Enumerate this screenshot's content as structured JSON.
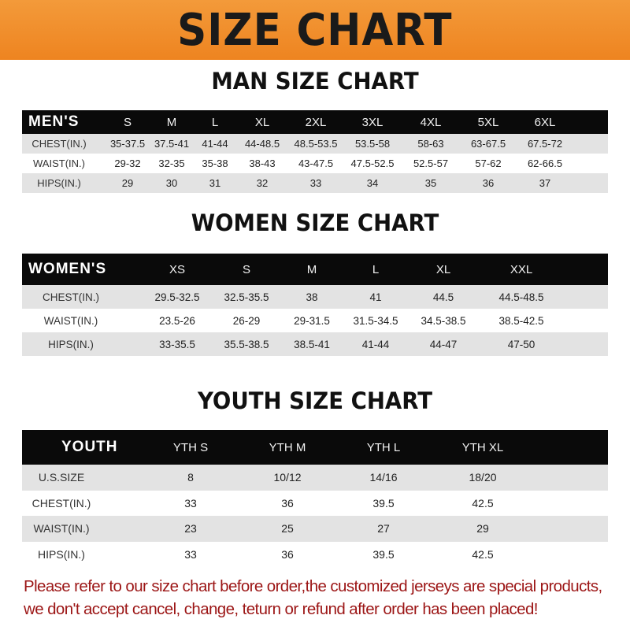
{
  "banner_title": "SIZE CHART",
  "accent_color": "#ee8420",
  "tables": [
    {
      "title": "MAN SIZE CHART",
      "header_label": "MEN'S",
      "sizes": [
        "S",
        "M",
        "L",
        "XL",
        "2XL",
        "3XL",
        "4XL",
        "5XL",
        "6XL"
      ],
      "rows": [
        {
          "label": "CHEST(IN.)",
          "values": [
            "35-37.5",
            "37.5-41",
            "41-44",
            "44-48.5",
            "48.5-53.5",
            "53.5-58",
            "58-63",
            "63-67.5",
            "67.5-72"
          ]
        },
        {
          "label": "WAIST(IN.)",
          "values": [
            "29-32",
            "32-35",
            "35-38",
            "38-43",
            "43-47.5",
            "47.5-52.5",
            "52.5-57",
            "57-62",
            "62-66.5"
          ]
        },
        {
          "label": "HIPS(IN.)",
          "values": [
            "29",
            "30",
            "31",
            "32",
            "33",
            "34",
            "35",
            "36",
            "37"
          ]
        }
      ]
    },
    {
      "title": "WOMEN SIZE CHART",
      "header_label": "WOMEN'S",
      "sizes": [
        "XS",
        "S",
        "M",
        "L",
        "XL",
        "XXL"
      ],
      "rows": [
        {
          "label": "CHEST(IN.)",
          "values": [
            "29.5-32.5",
            "32.5-35.5",
            "38",
            "41",
            "44.5",
            "44.5-48.5"
          ]
        },
        {
          "label": "WAIST(IN.)",
          "values": [
            "23.5-26",
            "26-29",
            "29-31.5",
            "31.5-34.5",
            "34.5-38.5",
            "38.5-42.5"
          ]
        },
        {
          "label": "HIPS(IN.)",
          "values": [
            "33-35.5",
            "35.5-38.5",
            "38.5-41",
            "41-44",
            "44-47",
            "47-50"
          ]
        }
      ]
    },
    {
      "title": "YOUTH SIZE CHART",
      "header_label": "YOUTH",
      "sizes": [
        "YTH S",
        "YTH M",
        "YTH L",
        "YTH XL"
      ],
      "rows": [
        {
          "label": "U.S.SIZE",
          "values": [
            "8",
            "10/12",
            "14/16",
            "18/20"
          ]
        },
        {
          "label": "CHEST(IN.)",
          "values": [
            "33",
            "36",
            "39.5",
            "42.5"
          ]
        },
        {
          "label": "WAIST(IN.)",
          "values": [
            "23",
            "25",
            "27",
            "29"
          ]
        },
        {
          "label": "HIPS(IN.)",
          "values": [
            "33",
            "36",
            "39.5",
            "42.5"
          ]
        }
      ]
    }
  ],
  "note": "Please refer to our size chart before order,the customized jerseys are special products, we don't accept cancel, change, teturn or refund after order has been placed!"
}
